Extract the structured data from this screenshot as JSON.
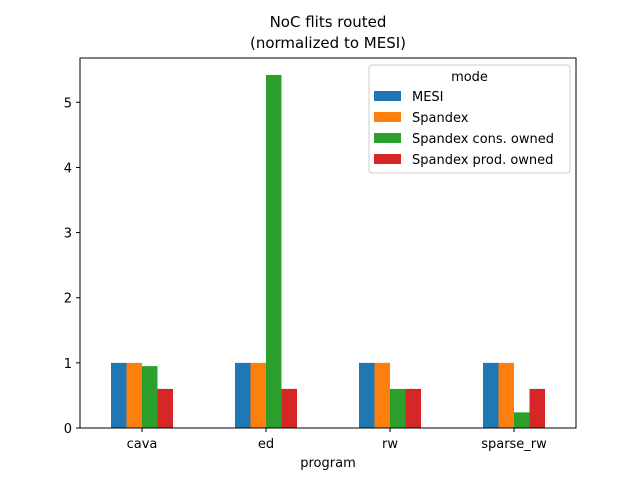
{
  "chart_data": {
    "type": "bar",
    "title": "NoC flits routed",
    "subtitle": "(normalized to MESI)",
    "xlabel": "program",
    "ylabel": "",
    "categories": [
      "cava",
      "ed",
      "rw",
      "sparse_rw"
    ],
    "ylim": [
      0,
      5.68
    ],
    "yticks": [
      0,
      1,
      2,
      3,
      4,
      5
    ],
    "grid": false,
    "legend": {
      "title": "mode",
      "placement": "top-right"
    },
    "series": [
      {
        "name": "MESI",
        "color": "#1f77b4",
        "values": [
          1.0,
          1.0,
          1.0,
          1.0
        ]
      },
      {
        "name": "Spandex",
        "color": "#ff7f0e",
        "values": [
          1.0,
          1.0,
          1.0,
          1.0
        ]
      },
      {
        "name": "Spandex cons. owned",
        "color": "#2ca02c",
        "values": [
          0.95,
          5.42,
          0.6,
          0.24
        ]
      },
      {
        "name": "Spandex prod. owned",
        "color": "#d62728",
        "values": [
          0.6,
          0.6,
          0.6,
          0.6
        ]
      }
    ]
  }
}
